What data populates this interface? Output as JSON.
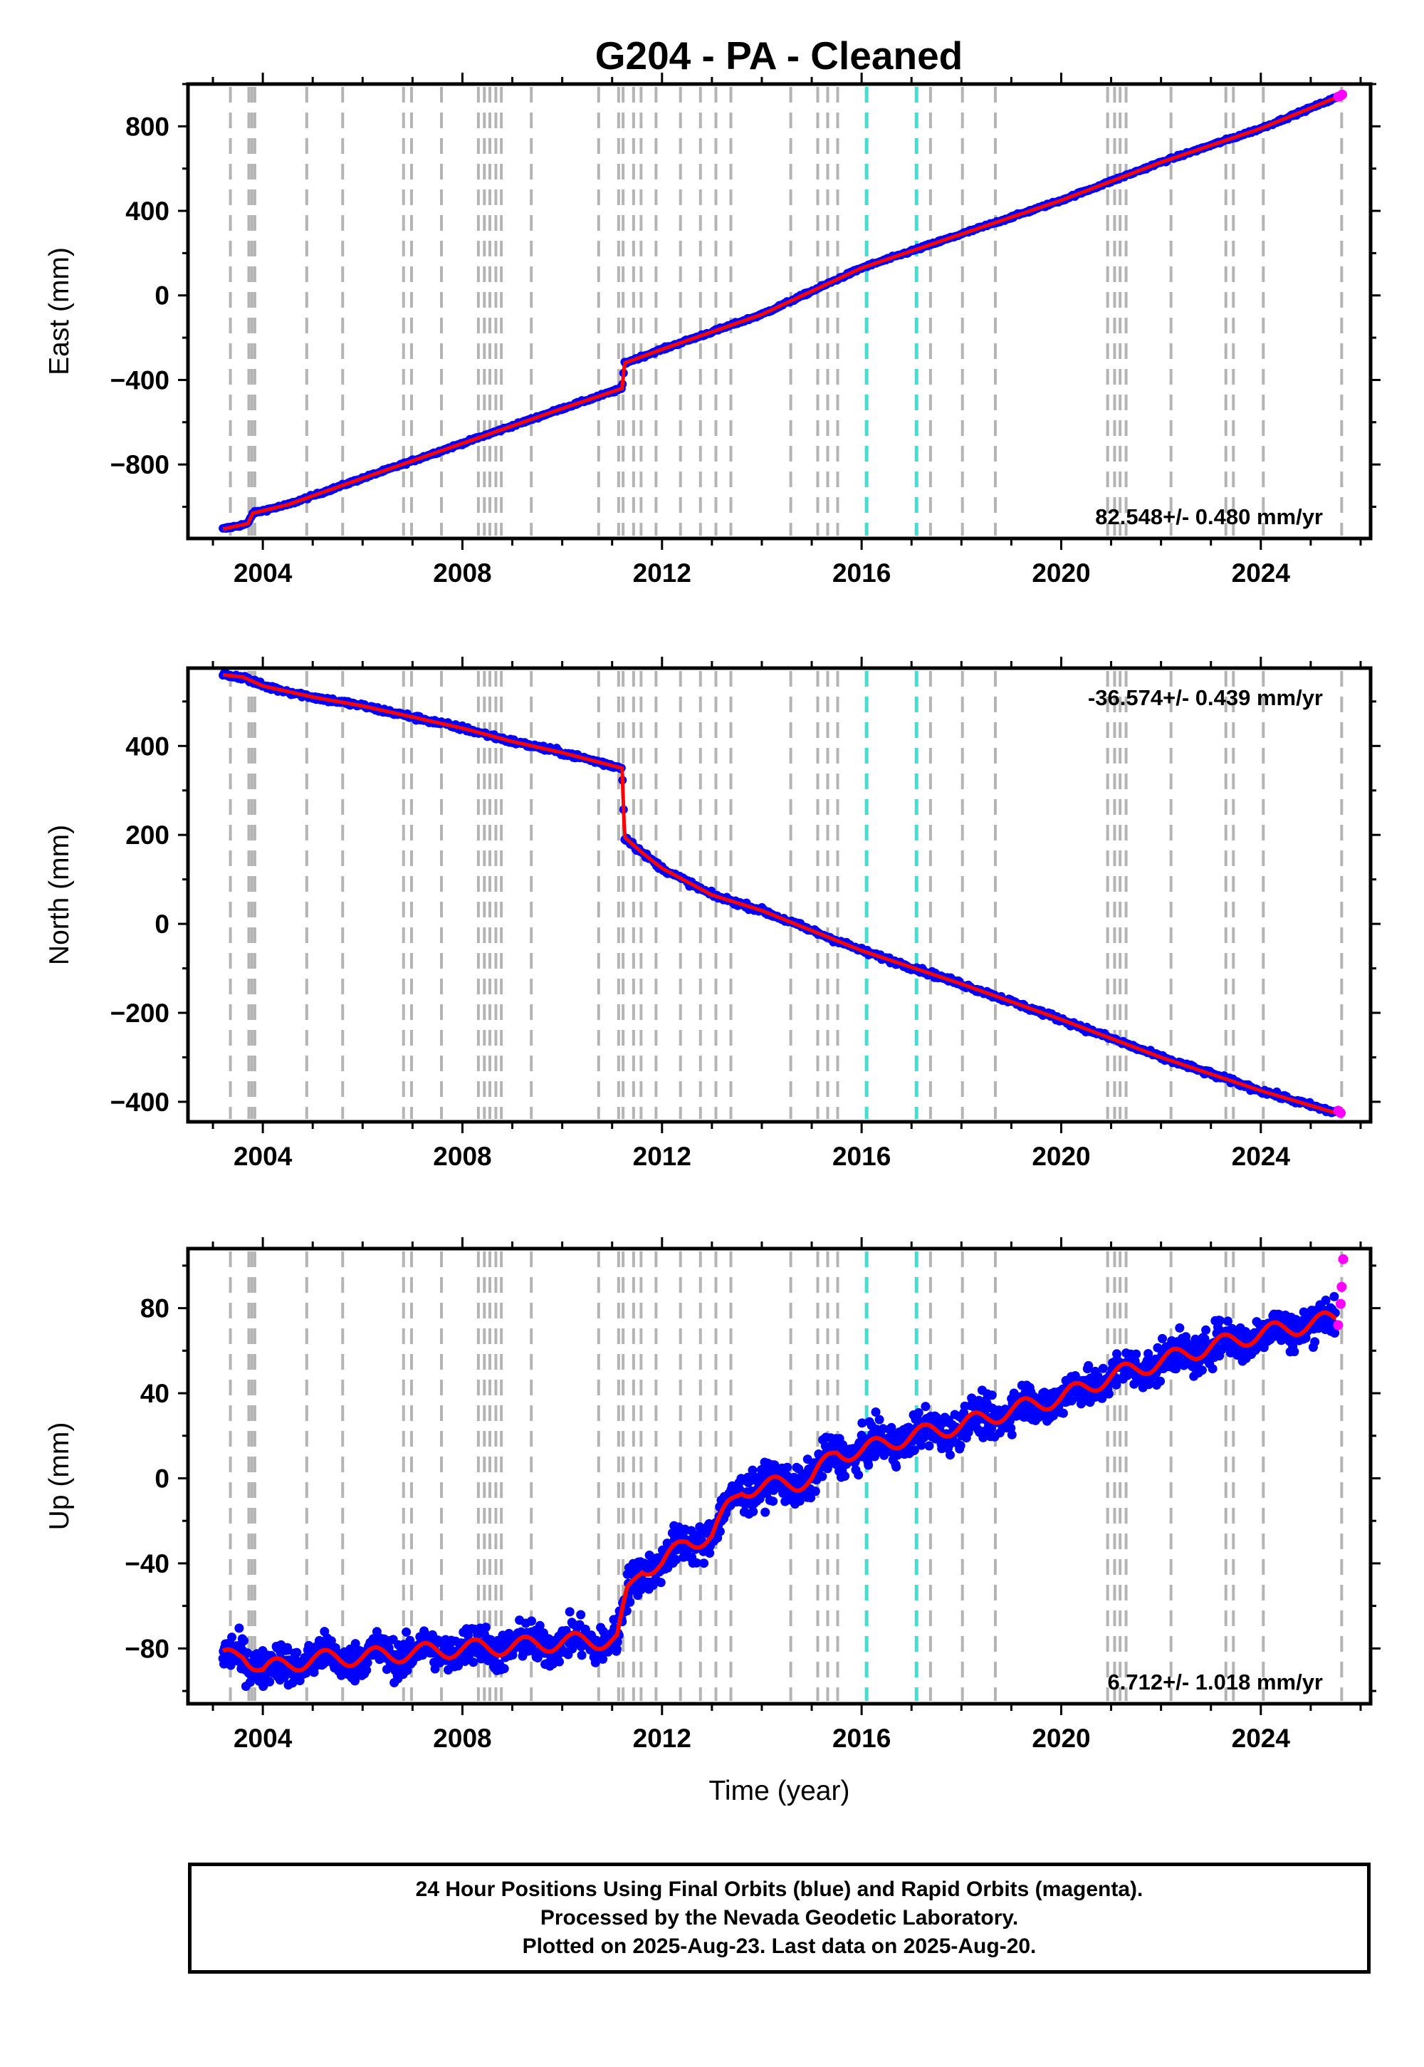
{
  "title": "G204  - PA - Cleaned",
  "colors": {
    "final_orbits": "#0000ff",
    "rapid_orbits": "#ff00ff",
    "model_fit": "#ff0000",
    "event_line": "#b4b4b4",
    "event_line_highlight": "#40e0d0"
  },
  "chart_data": [
    {
      "type": "scatter",
      "panel": "east",
      "ylabel": "East (mm)",
      "xlabel": "",
      "xlim": [
        2002.5,
        2026.2
      ],
      "ylim": [
        -1150,
        1000
      ],
      "yticks": [
        -800,
        -400,
        0,
        400,
        800
      ],
      "xticks": [
        2004,
        2008,
        2012,
        2016,
        2020,
        2024
      ],
      "rate_annotation": "82.548+/- 0.480 mm/yr",
      "rate_position": "bottom-right",
      "series": [
        {
          "role": "final",
          "x": [
            2003.2,
            2003.7,
            2003.8,
            2004.5,
            2006.0,
            2008.0,
            2010.0,
            2011.2,
            2011.25,
            2012.0,
            2014.0,
            2016.0,
            2018.0,
            2020.0,
            2022.0,
            2024.0,
            2025.5
          ],
          "y": [
            -1105,
            -1080,
            -1030,
            -990,
            -865,
            -700,
            -535,
            -440,
            -320,
            -255,
            -90,
            130,
            290,
            450,
            630,
            790,
            935
          ]
        },
        {
          "role": "rapid",
          "x": [
            2025.55,
            2025.6,
            2025.63
          ],
          "y": [
            940,
            945,
            950
          ]
        }
      ]
    },
    {
      "type": "scatter",
      "panel": "north",
      "ylabel": "North (mm)",
      "xlabel": "",
      "xlim": [
        2002.5,
        2026.2
      ],
      "ylim": [
        -445,
        575
      ],
      "yticks": [
        -400,
        -200,
        0,
        200,
        400
      ],
      "xticks": [
        2004,
        2008,
        2012,
        2016,
        2020,
        2024
      ],
      "rate_annotation": "-36.574+/- 0.439 mm/yr",
      "rate_position": "top-right",
      "series": [
        {
          "role": "final",
          "x": [
            2003.2,
            2003.6,
            2004.0,
            2005.0,
            2006.0,
            2007.0,
            2008.0,
            2009.0,
            2010.0,
            2011.2,
            2011.25,
            2011.6,
            2012.0,
            2013.0,
            2014.0,
            2015.0,
            2016.0,
            2018.0,
            2020.0,
            2022.0,
            2024.0,
            2025.5
          ],
          "y": [
            560,
            555,
            535,
            510,
            490,
            465,
            440,
            410,
            385,
            350,
            195,
            160,
            125,
            65,
            30,
            -15,
            -60,
            -135,
            -215,
            -300,
            -375,
            -425
          ]
        },
        {
          "role": "rapid",
          "x": [
            2025.55,
            2025.6
          ],
          "y": [
            -420,
            -425
          ]
        }
      ]
    },
    {
      "type": "scatter",
      "panel": "up",
      "ylabel": "Up (mm)",
      "xlabel": "Time (year)",
      "xlim": [
        2002.5,
        2026.2
      ],
      "ylim": [
        -106,
        108
      ],
      "yticks": [
        -80,
        -40,
        0,
        40,
        80
      ],
      "xticks": [
        2004,
        2008,
        2012,
        2016,
        2020,
        2024
      ],
      "rate_annotation": "6.712+/- 1.018 mm/yr",
      "rate_position": "bottom-right",
      "series": [
        {
          "role": "final",
          "x": [
            2003.2,
            2003.6,
            2004.0,
            2005.0,
            2006.0,
            2007.0,
            2008.0,
            2009.0,
            2010.0,
            2011.1,
            2011.3,
            2011.6,
            2012.0,
            2012.5,
            2013.0,
            2013.3,
            2013.6,
            2014.0,
            2014.7,
            2015.0,
            2015.5,
            2016.0,
            2017.0,
            2018.0,
            2019.0,
            2020.0,
            2021.0,
            2022.0,
            2023.0,
            2024.0,
            2025.5
          ],
          "y": [
            -85,
            -82,
            -90,
            -85,
            -84,
            -82,
            -80,
            -79,
            -77,
            -76,
            -55,
            -42,
            -40,
            -30,
            -27,
            -15,
            -5,
            -4,
            -2,
            0,
            12,
            13,
            20,
            25,
            32,
            38,
            48,
            55,
            62,
            68,
            75
          ]
        },
        {
          "role": "rapid",
          "x": [
            2025.55,
            2025.6,
            2025.62,
            2025.65
          ],
          "y": [
            72,
            82,
            90,
            103
          ]
        }
      ]
    }
  ],
  "event_lines": [
    2003.35,
    2003.72,
    2003.78,
    2003.84,
    2004.88,
    2005.6,
    2006.82,
    2006.98,
    2007.58,
    2008.32,
    2008.44,
    2008.55,
    2008.67,
    2008.78,
    2009.38,
    2010.73,
    2011.13,
    2011.22,
    2011.43,
    2011.58,
    2011.88,
    2012.37,
    2012.77,
    2013.08,
    2013.38,
    2014.58,
    2015.12,
    2015.32,
    2015.52,
    2016.1,
    2017.1,
    2017.38,
    2018.02,
    2018.68,
    2020.93,
    2021.07,
    2021.18,
    2021.3,
    2022.2,
    2023.3,
    2023.45,
    2024.05,
    2025.62
  ],
  "highlight_lines": [
    2016.1,
    2017.1
  ],
  "footer": {
    "line1": "24 Hour Positions Using Final Orbits (blue) and Rapid Orbits (magenta).",
    "line2": "Processed by the Nevada Geodetic Laboratory.",
    "line3": "Plotted on 2025-Aug-23. Last data on 2025-Aug-20."
  }
}
